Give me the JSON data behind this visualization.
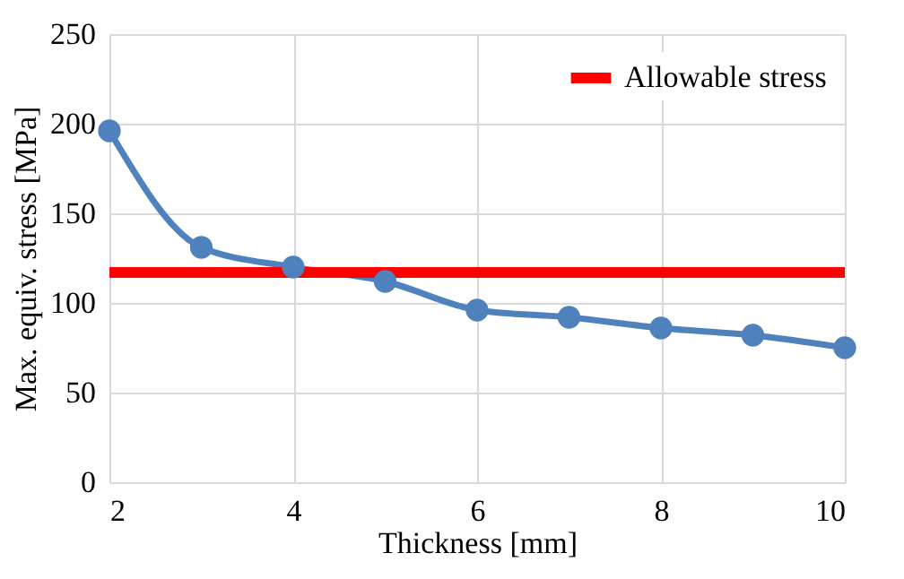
{
  "chart_data": {
    "type": "line",
    "xlabel": "Thickness [mm]",
    "ylabel": "Max. equiv. stress [MPa]",
    "x": [
      2,
      3,
      4,
      5,
      6,
      7,
      8,
      9,
      10
    ],
    "series": [
      {
        "color": "#4f81bd",
        "values": [
          196,
          131,
          120,
          112,
          96,
          92,
          86,
          82,
          75
        ],
        "marker": "circle"
      },
      {
        "name": "Allowable stress",
        "color": "#ff0000",
        "values": [
          117,
          117,
          117,
          117,
          117,
          117,
          117,
          117,
          117
        ],
        "marker": "none"
      }
    ],
    "xlim": [
      2,
      10
    ],
    "xticks": [
      2,
      4,
      6,
      8,
      10
    ],
    "ylim": [
      0,
      250
    ],
    "yticks": [
      0,
      50,
      100,
      150,
      200,
      250
    ],
    "grid": true,
    "legend": "top right",
    "line_style": "solid"
  }
}
